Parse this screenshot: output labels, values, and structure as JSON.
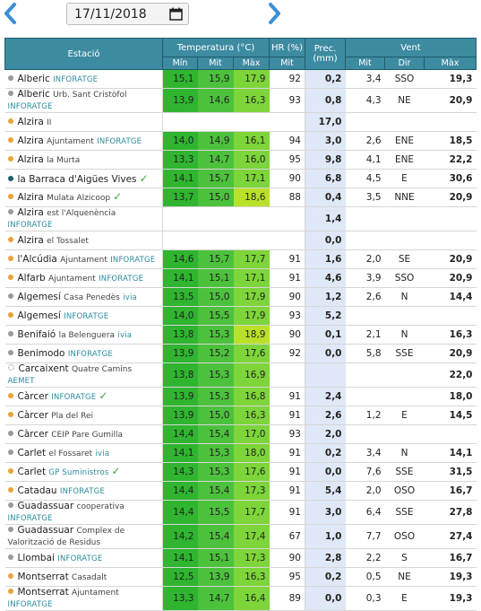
{
  "header": {
    "date": "17/11/2018"
  },
  "table": {
    "group_headers": {
      "station": "Estació",
      "temperature": "Temperatura (°C)",
      "humidity": "HR (%)",
      "precipitation": "Prec. (mm)",
      "wind": "Vent"
    },
    "sub_headers": {
      "tmin": "Mín",
      "tmid": "Mit",
      "tmax": "Màx",
      "hr": "Mit",
      "wmid": "Mit",
      "wdir": "Dir",
      "wmax": "Màx"
    },
    "rows": [
      {
        "name": "Alberic",
        "source": "INFORATGE",
        "dot": "#9a9a9a",
        "tmin": "15,1",
        "tmid": "15,9",
        "tmax": "17,9",
        "hr": "92",
        "prec": "0,2",
        "wmid": "3,4",
        "wdir": "SSO",
        "wmax": "19,3"
      },
      {
        "name": "Alberic",
        "detail": "Urb. Sant Cristòfol",
        "source": "INFORATGE",
        "dot": "#9a9a9a",
        "tmin": "13,9",
        "tmid": "14,6",
        "tmax": "16,3",
        "hr": "93",
        "prec": "0,8",
        "wmid": "4,3",
        "wdir": "NE",
        "wmax": "20,9"
      },
      {
        "name": "Alzira",
        "detail": "II",
        "dot": "#e8a33a",
        "prec": "17,0"
      },
      {
        "name": "Alzira",
        "detail": "Ajuntament",
        "source": "INFORATGE",
        "dot": "#e8a33a",
        "tmin": "14,0",
        "tmid": "14,9",
        "tmax": "16,1",
        "hr": "94",
        "prec": "3,0",
        "wmid": "2,6",
        "wdir": "ENE",
        "wmax": "18,5"
      },
      {
        "name": "Alzira",
        "detail": "la Murta",
        "dot": "#e8a33a",
        "tmin": "13,3",
        "tmid": "14,7",
        "tmax": "16,0",
        "hr": "95",
        "prec": "9,8",
        "wmid": "4,1",
        "wdir": "ENE",
        "wmax": "22,2"
      },
      {
        "name": "la Barraca d'Aigües Vives",
        "check": true,
        "dot": "#1f5d6b",
        "tmin": "14,1",
        "tmid": "15,7",
        "tmax": "17,1",
        "hr": "90",
        "prec": "6,8",
        "wmid": "4,5",
        "wdir": "E",
        "wmax": "30,6"
      },
      {
        "name": "Alzira",
        "detail": "Mulata Alzicoop",
        "check": true,
        "dot": "#e8a33a",
        "tmin": "13,7",
        "tmid": "15,0",
        "tmax": "18,6",
        "tmax_color": "#b9e12a",
        "hr": "88",
        "prec": "0,4",
        "wmid": "3,5",
        "wdir": "NNE",
        "wmax": "20,9"
      },
      {
        "name": "Alzira",
        "detail": "est l'Alquenència",
        "source": "INFORATGE",
        "dot": "#9a9a9a",
        "prec": "1,4"
      },
      {
        "name": "Alzira",
        "detail": "el Tossalet",
        "dot": "#e8a33a",
        "prec": "0,0"
      },
      {
        "name": "l'Alcúdia",
        "detail": "Ajuntament",
        "source": "INFORATGE",
        "dot": "#e8a33a",
        "tmin": "14,6",
        "tmid": "15,7",
        "tmax": "17,7",
        "hr": "91",
        "prec": "1,6",
        "wmid": "2,0",
        "wdir": "SE",
        "wmax": "20,9"
      },
      {
        "name": "Alfarb",
        "detail": "Ajuntament",
        "source": "INFORATGE",
        "dot": "#e8a33a",
        "tmin": "14,1",
        "tmid": "15,1",
        "tmax": "17,1",
        "hr": "91",
        "prec": "4,6",
        "wmid": "3,9",
        "wdir": "SSO",
        "wmax": "20,9"
      },
      {
        "name": "Algemesí",
        "detail": "Casa Penedès",
        "source": "ivia",
        "dot": "#9a9a9a",
        "tmin": "13,5",
        "tmid": "15,0",
        "tmax": "17,9",
        "hr": "90",
        "prec": "1,2",
        "wmid": "2,6",
        "wdir": "N",
        "wmax": "14,4"
      },
      {
        "name": "Algemesí",
        "source": "INFORATGE",
        "dot": "#e8a33a",
        "tmin": "14,0",
        "tmid": "15,5",
        "tmax": "17,9",
        "hr": "93",
        "prec": "5,2"
      },
      {
        "name": "Benifaió",
        "detail": "la Belenguera",
        "source": "ivia",
        "dot": "#9a9a9a",
        "tmin": "13,8",
        "tmid": "15,3",
        "tmax": "18,9",
        "tmax_color": "#b9e12a",
        "hr": "90",
        "prec": "0,1",
        "wmid": "2,1",
        "wdir": "N",
        "wmax": "16,3"
      },
      {
        "name": "Benimodo",
        "source": "INFORATGE",
        "dot": "#9a9a9a",
        "tmin": "13,9",
        "tmid": "15,2",
        "tmax": "17,6",
        "hr": "92",
        "prec": "0,0",
        "wmid": "5,8",
        "wdir": "SSE",
        "wmax": "20,9"
      },
      {
        "name": "Carcaixent",
        "detail": "Quatre Camins",
        "source": "AEMET",
        "dot": "#dddddd",
        "tmin": "13,8",
        "tmid": "15,3",
        "tmax": "16,9",
        "wmax": "22,0"
      },
      {
        "name": "Càrcer",
        "source": "INFORATGE",
        "check": true,
        "dot": "#e8a33a",
        "tmin": "13,9",
        "tmid": "15,3",
        "tmax": "16,8",
        "hr": "91",
        "prec": "2,4",
        "wmax": "18,0"
      },
      {
        "name": "Càrcer",
        "detail": "Pla del Rei",
        "dot": "#e8a33a",
        "tmin": "13,9",
        "tmid": "15,0",
        "tmax": "16,3",
        "hr": "91",
        "prec": "2,6",
        "wmid": "1,2",
        "wdir": "E",
        "wmax": "14,5"
      },
      {
        "name": "Càrcer",
        "detail": "CEIP Pare Gumilla",
        "dot": "#9a9a9a",
        "tmin": "14,4",
        "tmid": "15,4",
        "tmax": "17,0",
        "hr": "93",
        "prec": "2,0"
      },
      {
        "name": "Carlet",
        "detail": "el Fossaret",
        "source": "ivia",
        "dot": "#9a9a9a",
        "tmin": "14,1",
        "tmid": "15,3",
        "tmax": "18,0",
        "hr": "91",
        "prec": "0,2",
        "wmid": "3,4",
        "wdir": "N",
        "wmax": "14,1"
      },
      {
        "name": "Carlet",
        "source": "GP Suministros",
        "check": true,
        "dot": "#e8a33a",
        "tmin": "14,3",
        "tmid": "15,3",
        "tmax": "17,6",
        "hr": "91",
        "prec": "0,0",
        "wmid": "7,6",
        "wdir": "SSE",
        "wmax": "31,5"
      },
      {
        "name": "Catadau",
        "source": "INFORATGE",
        "dot": "#e8a33a",
        "tmin": "14,4",
        "tmid": "15,4",
        "tmax": "17,3",
        "hr": "91",
        "prec": "5,4",
        "wmid": "2,0",
        "wdir": "OSO",
        "wmax": "16,7"
      },
      {
        "name": "Guadassuar",
        "detail": "cooperativa",
        "source": "INFORATGE",
        "dot": "#9a9a9a",
        "tmin": "14,4",
        "tmid": "15,5",
        "tmax": "17,7",
        "hr": "91",
        "prec": "3,0",
        "wmid": "6,4",
        "wdir": "SSE",
        "wmax": "27,8"
      },
      {
        "name": "Guadassuar",
        "detail": "Complex de Valorització de Residus",
        "dot": "#9a9a9a",
        "tmin": "14,2",
        "tmid": "15,4",
        "tmax": "17,4",
        "hr": "67",
        "prec": "1,0",
        "wmid": "7,7",
        "wdir": "OSO",
        "wmax": "27,4"
      },
      {
        "name": "Llombai",
        "source": "INFORATGE",
        "dot": "#9a9a9a",
        "tmin": "14,1",
        "tmid": "15,1",
        "tmax": "17,3",
        "hr": "90",
        "prec": "2,8",
        "wmid": "2,2",
        "wdir": "S",
        "wmax": "16,7"
      },
      {
        "name": "Montserrat",
        "detail": "Casadalt",
        "dot": "#e8a33a",
        "tmin": "12,5",
        "tmid": "13,9",
        "tmax": "16,3",
        "hr": "95",
        "prec": "0,2",
        "wmid": "0,5",
        "wdir": "NE",
        "wmax": "19,3"
      },
      {
        "name": "Montserrat",
        "detail": "Ajuntament",
        "source": "INFORATGE",
        "dot": "#e8a33a",
        "tmin": "13,3",
        "tmid": "14,7",
        "tmax": "16,4",
        "hr": "89",
        "prec": "0,0",
        "wmid": "0,3",
        "wdir": "E",
        "wmax": "19,3"
      }
    ]
  }
}
